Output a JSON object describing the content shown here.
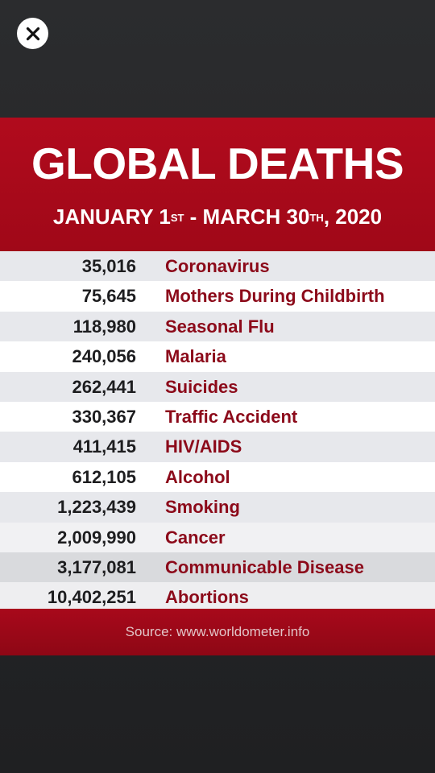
{
  "close_button": {
    "icon": "close-icon",
    "glyph": "✕"
  },
  "infographic": {
    "title": "GLOBAL DEATHS",
    "subtitle": {
      "start_month_day": "JANUARY 1",
      "start_suffix": "ST",
      "separator": " - ",
      "end_month_day": "MARCH 30",
      "end_suffix": "TH",
      "year": ", 2020"
    },
    "rows": [
      {
        "value": "35,016",
        "cause": "Coronavirus"
      },
      {
        "value": "75,645",
        "cause": "Mothers During Childbirth"
      },
      {
        "value": "118,980",
        "cause": "Seasonal Flu"
      },
      {
        "value": "240,056",
        "cause": "Malaria"
      },
      {
        "value": "262,441",
        "cause": "Suicides"
      },
      {
        "value": "330,367",
        "cause": "Traffic Accident"
      },
      {
        "value": "411,415",
        "cause": "HIV/AIDS"
      },
      {
        "value": "612,105",
        "cause": "Alcohol"
      },
      {
        "value": "1,223,439",
        "cause": "Smoking"
      },
      {
        "value": "2,009,990",
        "cause": "Cancer"
      },
      {
        "value": "3,177,081",
        "cause": "Communicable Disease"
      },
      {
        "value": "10,402,251",
        "cause": "Abortions"
      }
    ],
    "source": "Source: www.worldometer.info"
  },
  "colors": {
    "header_red": "#b10b1d",
    "cause_text": "#8c0a1a",
    "row_alt": "#e7e8ec"
  }
}
